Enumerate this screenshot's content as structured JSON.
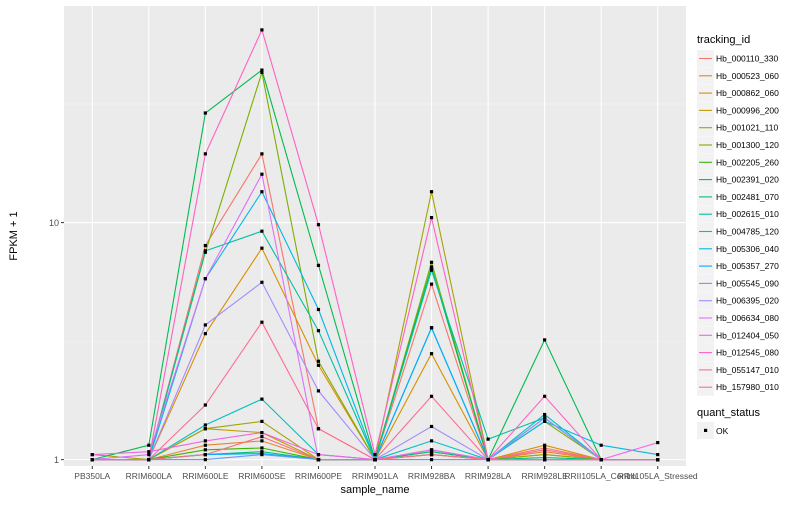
{
  "chart_data": {
    "type": "line",
    "xlabel": "sample_name",
    "ylabel": "FPKM + 1",
    "y_scale": "log10",
    "ylim": [
      0.94,
      82
    ],
    "y_ticks": [
      1,
      10
    ],
    "y_tick_labels": [
      "1 -",
      "10 -"
    ],
    "grid": true,
    "legend_position": "right",
    "categories": [
      "PB350LA",
      "RRIM600LA",
      "RRIM600LE",
      "RRIM600SE",
      "RRIM600PE",
      "RRIM901LA",
      "RRIM928BA",
      "RRIM928LA",
      "RRIM928LE",
      "RRII105LA_Control",
      "RRII105LA_Stressed"
    ],
    "legend_title": "tracking_id",
    "series": [
      {
        "name": "Hb_000110_330",
        "color": "#F8766D",
        "values": [
          1.0,
          1.0,
          8.0,
          19.5,
          1.35,
          1.0,
          5.5,
          1.0,
          1.12,
          1.0,
          1.0
        ]
      },
      {
        "name": "Hb_000523_060",
        "color": "#EA8331",
        "values": [
          1.0,
          1.0,
          1.15,
          1.2,
          1.0,
          1.0,
          1.1,
          1.0,
          1.08,
          1.0,
          1.0
        ]
      },
      {
        "name": "Hb_000862_060",
        "color": "#D89000",
        "values": [
          1.0,
          1.0,
          3.4,
          7.8,
          2.5,
          1.0,
          2.8,
          1.0,
          1.15,
          1.0,
          1.0
        ]
      },
      {
        "name": "Hb_000996_200",
        "color": "#C09B00",
        "values": [
          1.0,
          1.0,
          1.35,
          1.3,
          1.0,
          1.0,
          1.08,
          1.0,
          1.05,
          1.0,
          1.0
        ]
      },
      {
        "name": "Hb_001021_110",
        "color": "#A3A500",
        "values": [
          1.05,
          1.0,
          1.35,
          1.45,
          1.0,
          1.0,
          13.5,
          1.0,
          1.05,
          1.0,
          1.0
        ]
      },
      {
        "name": "Hb_001300_120",
        "color": "#7CAE00",
        "values": [
          1.0,
          1.0,
          7.5,
          43.0,
          2.6,
          1.0,
          6.8,
          1.0,
          1.45,
          1.0,
          1.0
        ]
      },
      {
        "name": "Hb_002205_260",
        "color": "#39B600",
        "values": [
          1.0,
          1.0,
          1.1,
          1.12,
          1.0,
          1.0,
          1.05,
          1.0,
          1.0,
          1.0,
          1.0
        ]
      },
      {
        "name": "Hb_002391_020",
        "color": "#00BB4E",
        "values": [
          1.0,
          1.15,
          29.0,
          44.0,
          6.6,
          1.0,
          6.5,
          1.0,
          3.2,
          1.0,
          1.0
        ]
      },
      {
        "name": "Hb_002481_070",
        "color": "#00BF7D",
        "values": [
          1.0,
          1.0,
          1.05,
          1.08,
          1.0,
          1.0,
          1.08,
          1.0,
          1.02,
          1.0,
          1.0
        ]
      },
      {
        "name": "Hb_002615_010",
        "color": "#00C1A3",
        "values": [
          1.0,
          1.0,
          7.6,
          9.2,
          3.5,
          1.0,
          6.3,
          1.22,
          1.5,
          1.0,
          1.0
        ]
      },
      {
        "name": "Hb_004785_120",
        "color": "#00BFC4",
        "values": [
          1.0,
          1.0,
          1.4,
          1.8,
          1.05,
          1.0,
          1.2,
          1.0,
          1.55,
          1.0,
          1.0
        ]
      },
      {
        "name": "Hb_005306_040",
        "color": "#00B8E5",
        "values": [
          1.0,
          1.0,
          5.8,
          13.5,
          4.3,
          1.0,
          3.6,
          1.0,
          1.45,
          1.15,
          1.05
        ]
      },
      {
        "name": "Hb_005357_270",
        "color": "#00ABFD",
        "values": [
          1.0,
          1.0,
          1.05,
          1.06,
          1.0,
          1.0,
          3.6,
          1.0,
          1.5,
          1.0,
          1.0
        ]
      },
      {
        "name": "Hb_005545_090",
        "color": "#619CFF",
        "values": [
          1.0,
          1.0,
          1.0,
          1.05,
          1.0,
          1.0,
          1.0,
          1.0,
          1.0,
          1.0,
          1.0
        ]
      },
      {
        "name": "Hb_006395_020",
        "color": "#A58AFF",
        "values": [
          1.0,
          1.0,
          3.7,
          5.6,
          1.95,
          1.0,
          1.38,
          1.0,
          1.5,
          1.0,
          1.0
        ]
      },
      {
        "name": "Hb_006634_080",
        "color": "#DB72FB",
        "values": [
          1.0,
          1.05,
          5.8,
          16.0,
          1.0,
          1.0,
          1.1,
          1.0,
          1.0,
          1.0,
          1.0
        ]
      },
      {
        "name": "Hb_012404_050",
        "color": "#F564E3",
        "values": [
          1.05,
          1.08,
          1.2,
          1.3,
          1.05,
          1.0,
          1.05,
          1.0,
          1.0,
          1.0,
          1.18
        ]
      },
      {
        "name": "Hb_012545_080",
        "color": "#FF61C3",
        "values": [
          1.0,
          1.0,
          19.5,
          65.0,
          9.8,
          1.05,
          10.5,
          1.0,
          1.85,
          1.0,
          1.0
        ]
      },
      {
        "name": "Hb_055147_010",
        "color": "#FF6C91",
        "values": [
          1.0,
          1.0,
          1.7,
          3.8,
          1.35,
          1.0,
          1.85,
          1.0,
          1.1,
          1.0,
          1.0
        ]
      },
      {
        "name": "Hb_157980_010",
        "color": "#FC717F",
        "values": [
          1.0,
          1.0,
          1.05,
          1.25,
          1.0,
          1.0,
          1.05,
          1.0,
          1.0,
          1.0,
          1.0
        ]
      }
    ],
    "point_legend_title": "quant_status",
    "point_legend_label": "OK"
  }
}
